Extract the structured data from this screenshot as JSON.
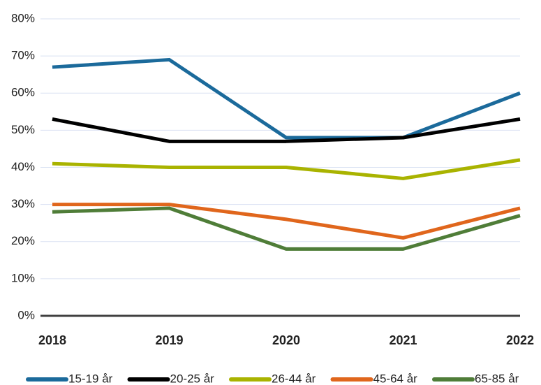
{
  "chart_data": {
    "type": "line",
    "categories": [
      "2018",
      "2019",
      "2020",
      "2021",
      "2022"
    ],
    "series": [
      {
        "name": "15-19 år",
        "color": "#1b6a9b",
        "values": [
          67,
          69,
          48,
          48,
          60
        ]
      },
      {
        "name": "20-25 år",
        "color": "#000000",
        "values": [
          53,
          47,
          47,
          48,
          53
        ]
      },
      {
        "name": "26-44 år",
        "color": "#a9b300",
        "values": [
          41,
          40,
          40,
          37,
          42
        ]
      },
      {
        "name": "45-64 år",
        "color": "#e0661c",
        "values": [
          30,
          30,
          26,
          21,
          29
        ]
      },
      {
        "name": "65-85 år",
        "color": "#4f7d38",
        "values": [
          28,
          29,
          18,
          18,
          27
        ]
      }
    ],
    "ylim": [
      0,
      80
    ],
    "yticks": [
      {
        "value": 0,
        "label": "0%"
      },
      {
        "value": 10,
        "label": "10%"
      },
      {
        "value": 20,
        "label": "20%"
      },
      {
        "value": 30,
        "label": "30%"
      },
      {
        "value": 40,
        "label": "40%"
      },
      {
        "value": 50,
        "label": "50%"
      },
      {
        "value": 60,
        "label": "60%"
      },
      {
        "value": 70,
        "label": "70%"
      },
      {
        "value": 80,
        "label": "80%"
      }
    ],
    "grid": true,
    "legend": "bottom"
  }
}
